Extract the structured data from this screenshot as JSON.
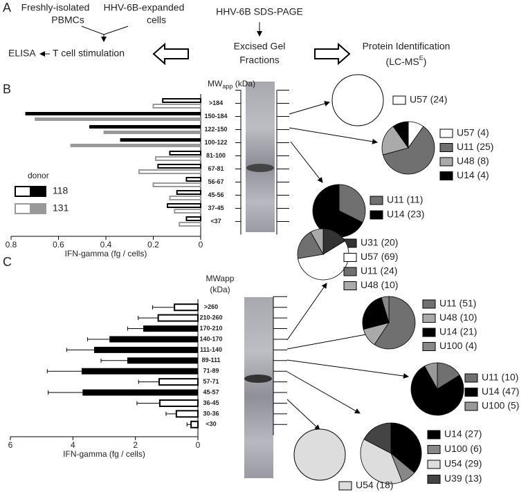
{
  "figure": {
    "panel_a": {
      "label": "A",
      "pbmc": [
        "Freshly-isolated",
        "PBMCs"
      ],
      "expanded": [
        "HHV-6B-expanded",
        "cells"
      ],
      "sds": "HHV-6B SDS-PAGE",
      "elisa": "ELISA",
      "stim": "T cell stimulation",
      "excised": [
        "Excised Gel",
        "Fractions"
      ],
      "protein_id": [
        "Protein Identification",
        "(LC-MS",
        "E",
        ")"
      ]
    }
  },
  "chart_data": [
    {
      "type": "bar",
      "orientation": "horizontal",
      "panel_label": "B",
      "mw_label": [
        "MW",
        "app",
        " (kDa)"
      ],
      "categories": [
        ">184",
        "150-184",
        "122-150",
        "100-122",
        "81-100",
        "67-81",
        "56-67",
        "45-56",
        "37-45",
        "<37"
      ],
      "xlim": [
        0.8,
        0
      ],
      "xticks": [
        0.8,
        0.6,
        0.4,
        0.2,
        0
      ],
      "xlabel": "IFN-gamma (fg / cells)",
      "legend_title": "donor",
      "series": [
        {
          "name": "118",
          "color": "#000000",
          "values": [
            0.16,
            0.74,
            0.47,
            0.34,
            0.13,
            0.18,
            0.06,
            0.1,
            0.14,
            0.06
          ],
          "filled": [
            false,
            true,
            true,
            true,
            false,
            false,
            false,
            false,
            false,
            false
          ]
        },
        {
          "name": "131",
          "color": "#999999",
          "values": [
            0.2,
            0.7,
            0.41,
            0.55,
            0.19,
            0.26,
            0.2,
            0.13,
            0.11,
            0.09
          ],
          "filled": [
            false,
            true,
            true,
            true,
            false,
            false,
            false,
            false,
            false,
            false
          ]
        }
      ],
      "pies": [
        {
          "labels": [
            "U57 (24)"
          ],
          "values": [
            24
          ],
          "colors": [
            "#ffffff"
          ]
        },
        {
          "labels": [
            "U57 (4)",
            "U11 (25)",
            "U48 (8)",
            "U14 (4)"
          ],
          "values": [
            4,
            25,
            8,
            4
          ],
          "colors": [
            "#ffffff",
            "#707070",
            "#aaaaaa",
            "#000000"
          ]
        },
        {
          "labels": [
            "U11 (11)",
            "U14 (23)"
          ],
          "values": [
            11,
            23
          ],
          "colors": [
            "#707070",
            "#000000"
          ]
        }
      ]
    },
    {
      "type": "bar",
      "orientation": "horizontal",
      "panel_label": "C",
      "mw_label": [
        "MWapp",
        "(kDa)"
      ],
      "categories": [
        ">260",
        "210-260",
        "170-210",
        "140-170",
        "111-140",
        "89-111",
        "71-89",
        "57-71",
        "45-57",
        "36-45",
        "30-36",
        "<30"
      ],
      "xlim": [
        6,
        0
      ],
      "xticks": [
        6,
        4,
        2,
        0
      ],
      "xlabel": "IFN-gamma (fg / cells)",
      "series": [
        {
          "color": "#000000",
          "values": [
            0.75,
            1.27,
            1.75,
            2.83,
            3.32,
            2.26,
            3.72,
            1.24,
            3.69,
            1.22,
            0.69,
            0.22
          ],
          "errors": [
            0.7,
            0.64,
            0.5,
            0.7,
            0.88,
            0.84,
            1.1,
            0.66,
            1.1,
            0.73,
            0.33,
            0.13
          ],
          "filled": [
            false,
            false,
            true,
            true,
            true,
            true,
            true,
            false,
            true,
            false,
            false,
            false
          ]
        }
      ],
      "pies": [
        {
          "labels": [
            "U31 (20)",
            "U57 (69)",
            "U11 (24)",
            "U48 (10)"
          ],
          "values": [
            20,
            69,
            24,
            10
          ],
          "colors": [
            "#333333",
            "#ffffff",
            "#707070",
            "#aaaaaa"
          ]
        },
        {
          "labels": [
            "U11 (51)",
            "U48 (10)",
            "U14 (21)",
            "U100 (4)"
          ],
          "values": [
            51,
            10,
            21,
            4
          ],
          "colors": [
            "#707070",
            "#aaaaaa",
            "#000000",
            "#888888"
          ]
        },
        {
          "labels": [
            "U11 (10)",
            "U14 (47)",
            "U100 (5)"
          ],
          "values": [
            10,
            47,
            5
          ],
          "colors": [
            "#707070",
            "#000000",
            "#999999"
          ]
        },
        {
          "labels": [
            "U14 (27)",
            "U100 (6)",
            "U54 (29)",
            "U39 (13)"
          ],
          "values": [
            27,
            6,
            29,
            13
          ],
          "colors": [
            "#000000",
            "#888888",
            "#dddddd",
            "#444444"
          ]
        },
        {
          "labels": [
            "U54 (18)"
          ],
          "values": [
            18
          ],
          "colors": [
            "#dddddd"
          ]
        }
      ]
    }
  ]
}
